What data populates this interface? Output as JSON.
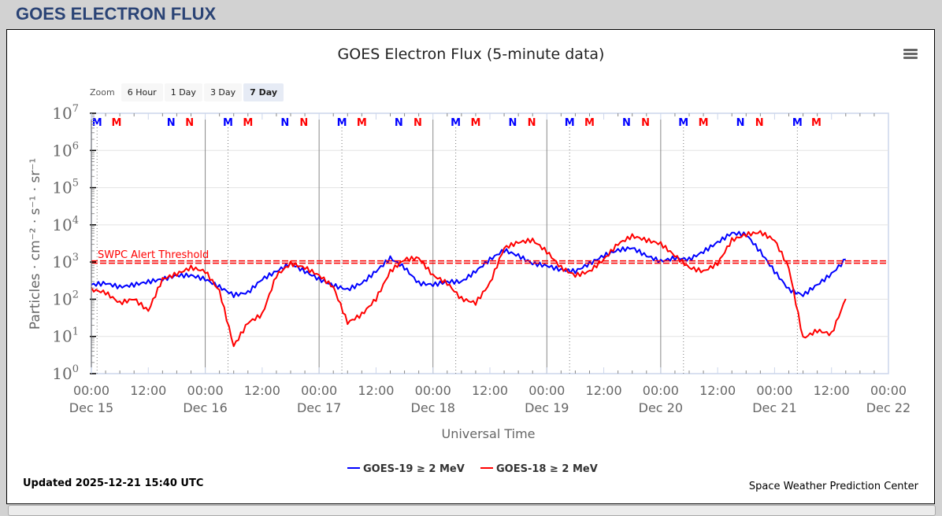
{
  "page": {
    "title": "GOES ELECTRON FLUX"
  },
  "zoom": {
    "label": "Zoom",
    "buttons": [
      "6 Hour",
      "1 Day",
      "3 Day",
      "7 Day"
    ],
    "active": "7 Day"
  },
  "footer": {
    "updated": "Updated 2025-12-21 15:40 UTC",
    "credit": "Space Weather Prediction Center"
  },
  "chart_data": {
    "type": "line",
    "title": "GOES Electron Flux (5-minute data)",
    "xlabel": "Universal Time",
    "ylabel": "Particles · cm⁻² · s⁻¹ · sr⁻¹",
    "yscale": "log",
    "ylim": [
      1,
      10000000
    ],
    "y_ticks": [
      {
        "base": "10",
        "exp": "0"
      },
      {
        "base": "10",
        "exp": "1"
      },
      {
        "base": "10",
        "exp": "2"
      },
      {
        "base": "10",
        "exp": "3"
      },
      {
        "base": "10",
        "exp": "4"
      },
      {
        "base": "10",
        "exp": "5"
      },
      {
        "base": "10",
        "exp": "6"
      },
      {
        "base": "10",
        "exp": "7"
      }
    ],
    "x_range_days": [
      0,
      7
    ],
    "x_ticks": [
      {
        "time": "00:00",
        "date": "Dec 15"
      },
      {
        "time": "12:00",
        "date": ""
      },
      {
        "time": "00:00",
        "date": "Dec 16"
      },
      {
        "time": "12:00",
        "date": ""
      },
      {
        "time": "00:00",
        "date": "Dec 17"
      },
      {
        "time": "12:00",
        "date": ""
      },
      {
        "time": "00:00",
        "date": "Dec 18"
      },
      {
        "time": "12:00",
        "date": ""
      },
      {
        "time": "00:00",
        "date": "Dec 19"
      },
      {
        "time": "12:00",
        "date": ""
      },
      {
        "time": "00:00",
        "date": "Dec 20"
      },
      {
        "time": "12:00",
        "date": ""
      },
      {
        "time": "00:00",
        "date": "Dec 21"
      },
      {
        "time": "12:00",
        "date": ""
      },
      {
        "time": "00:00",
        "date": "Dec 22"
      }
    ],
    "grid": true,
    "threshold": {
      "label": "SWPC Alert Threshold",
      "value": 1000,
      "color": "#ff0000"
    },
    "sample_interval_hours": 3,
    "series": [
      {
        "name": "GOES-19 ≥ 2 MeV",
        "color": "#0000ff",
        "values_log10": [
          2.39,
          2.43,
          2.33,
          2.39,
          2.47,
          2.54,
          2.64,
          2.64,
          2.54,
          2.33,
          2.11,
          2.18,
          2.54,
          2.75,
          2.96,
          2.75,
          2.54,
          2.37,
          2.26,
          2.43,
          2.75,
          3.11,
          2.85,
          2.43,
          2.39,
          2.47,
          2.47,
          2.75,
          3.07,
          3.32,
          3.17,
          2.96,
          2.9,
          2.79,
          2.75,
          2.96,
          3.17,
          3.32,
          3.38,
          3.17,
          3.02,
          3.11,
          3.07,
          3.28,
          3.53,
          3.78,
          3.74,
          3.28,
          2.75,
          2.26,
          2.11,
          2.39,
          2.68,
          3.07
        ]
      },
      {
        "name": "GOES-18 ≥ 2 MeV",
        "color": "#ff0000",
        "values_log10": [
          2.26,
          2.18,
          1.9,
          2.01,
          1.69,
          2.54,
          2.68,
          2.85,
          2.75,
          2.22,
          0.74,
          1.37,
          1.59,
          2.64,
          2.96,
          2.85,
          2.64,
          2.33,
          1.37,
          1.59,
          2.01,
          2.75,
          3.07,
          3.11,
          2.64,
          2.43,
          2.01,
          1.9,
          2.43,
          3.38,
          3.53,
          3.59,
          3.28,
          2.85,
          2.64,
          2.75,
          3.07,
          3.49,
          3.7,
          3.59,
          3.49,
          3.17,
          2.85,
          2.75,
          2.96,
          3.59,
          3.74,
          3.8,
          3.59,
          2.85,
          0.95,
          1.16,
          1.06,
          2.01
        ]
      }
    ],
    "markers": [
      {
        "day": 0,
        "hour": 1.2,
        "label": "M",
        "color": "#0000ff"
      },
      {
        "day": 0,
        "hour": 5.3,
        "label": "M",
        "color": "#ff0000"
      },
      {
        "day": 0,
        "hour": 16.8,
        "label": "N",
        "color": "#0000ff"
      },
      {
        "day": 0,
        "hour": 20.7,
        "label": "N",
        "color": "#ff0000"
      },
      {
        "day": 1,
        "hour": 4.8,
        "label": "M",
        "color": "#0000ff"
      },
      {
        "day": 1,
        "hour": 9.0,
        "label": "M",
        "color": "#ff0000"
      },
      {
        "day": 1,
        "hour": 16.8,
        "label": "N",
        "color": "#0000ff"
      },
      {
        "day": 1,
        "hour": 20.8,
        "label": "N",
        "color": "#ff0000"
      },
      {
        "day": 2,
        "hour": 4.8,
        "label": "M",
        "color": "#0000ff"
      },
      {
        "day": 2,
        "hour": 9.0,
        "label": "M",
        "color": "#ff0000"
      },
      {
        "day": 2,
        "hour": 16.8,
        "label": "N",
        "color": "#0000ff"
      },
      {
        "day": 2,
        "hour": 20.8,
        "label": "N",
        "color": "#ff0000"
      },
      {
        "day": 3,
        "hour": 4.8,
        "label": "M",
        "color": "#0000ff"
      },
      {
        "day": 3,
        "hour": 9.0,
        "label": "M",
        "color": "#ff0000"
      },
      {
        "day": 3,
        "hour": 16.8,
        "label": "N",
        "color": "#0000ff"
      },
      {
        "day": 3,
        "hour": 20.8,
        "label": "N",
        "color": "#ff0000"
      },
      {
        "day": 4,
        "hour": 4.8,
        "label": "M",
        "color": "#0000ff"
      },
      {
        "day": 4,
        "hour": 9.0,
        "label": "M",
        "color": "#ff0000"
      },
      {
        "day": 4,
        "hour": 16.8,
        "label": "N",
        "color": "#0000ff"
      },
      {
        "day": 4,
        "hour": 20.8,
        "label": "N",
        "color": "#ff0000"
      },
      {
        "day": 5,
        "hour": 4.8,
        "label": "M",
        "color": "#0000ff"
      },
      {
        "day": 5,
        "hour": 9.0,
        "label": "M",
        "color": "#ff0000"
      },
      {
        "day": 5,
        "hour": 16.8,
        "label": "N",
        "color": "#0000ff"
      },
      {
        "day": 5,
        "hour": 20.8,
        "label": "N",
        "color": "#ff0000"
      },
      {
        "day": 6,
        "hour": 4.8,
        "label": "M",
        "color": "#0000ff"
      },
      {
        "day": 6,
        "hour": 8.8,
        "label": "M",
        "color": "#ff0000"
      }
    ],
    "legend_position": "bottom-center"
  }
}
